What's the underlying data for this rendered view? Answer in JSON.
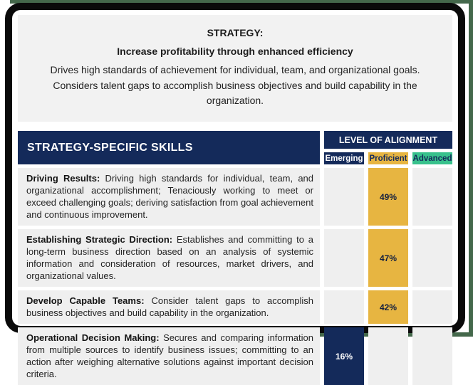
{
  "strategy": {
    "label": "STRATEGY:",
    "title": "Increase profitability through enhanced efficiency",
    "description": "Drives high standards of achievement for individual, team, and organizational goals. Considers talent gaps to accomplish business objectives and build capability in the organization."
  },
  "table": {
    "skills_header": "STRATEGY-SPECIFIC SKILLS",
    "alignment_header": "LEVEL OF ALIGNMENT",
    "levels": {
      "emerging": "Emerging",
      "proficient": "Proficient",
      "advanced": "Advanced"
    },
    "rows": [
      {
        "skill": "Driving Results:",
        "description": " Driving high standards for individual, team, and organizational accomplishment; Tenaciously working to meet or exceed challenging goals; deriving satisfaction from goal achievement and continuous improvement.",
        "level": "Proficient",
        "value": "49%"
      },
      {
        "skill": "Establishing Strategic Direction:",
        "description": " Establishes and committing to a long-term business direction based on an analysis of systemic information and consideration of resources, market drivers, and organizational values.",
        "level": "Proficient",
        "value": "47%"
      },
      {
        "skill": "Develop Capable Teams:",
        "description": " Consider talent gaps to accomplish business objectives and build capability in the organization.",
        "level": "Proficient",
        "value": "42%"
      },
      {
        "skill": "Operational Decision Making:",
        "description": " Secures and comparing information from multiple sources to identify business issues; committing to an action after weighing alternative solutions against important decision criteria.",
        "level": "Emerging",
        "value": "16%"
      }
    ]
  },
  "colors": {
    "navy": "#142a5a",
    "gold": "#e7b541",
    "green": "#38c18c",
    "row_gray": "#efefef",
    "title_gray": "#f2f2f2",
    "frame_black": "#0a0a0a",
    "edge_green": "#44684b"
  }
}
